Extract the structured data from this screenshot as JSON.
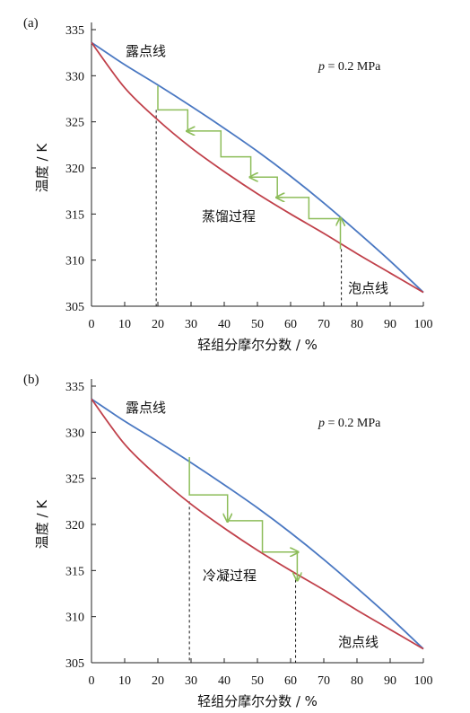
{
  "chart_data": [
    {
      "type": "line",
      "panel_label": "(a)",
      "pressure_label": {
        "symbol": "p",
        "rest": " = 0.2 MPa"
      },
      "xlabel": "轻组分摩尔分数 / %",
      "ylabel": "温度 / K",
      "xlim": [
        0,
        100
      ],
      "ylim": [
        305,
        335
      ],
      "xticks": [
        "0",
        "10",
        "20",
        "30",
        "40",
        "50",
        "60",
        "70",
        "80",
        "90",
        "100"
      ],
      "yticks": [
        "305",
        "310",
        "315",
        "320",
        "325",
        "330",
        "335"
      ],
      "series": [
        {
          "name": "露点线",
          "color": "#4a78c2",
          "x": [
            0,
            10,
            20,
            30,
            40,
            50,
            60,
            70,
            80,
            90,
            100
          ],
          "y": [
            333.6,
            331.2,
            329.0,
            326.7,
            324.3,
            321.8,
            319.1,
            316.2,
            313.1,
            309.9,
            306.5
          ]
        },
        {
          "name": "泡点线",
          "color": "#c0404a",
          "x": [
            0,
            10,
            20,
            30,
            40,
            50,
            60,
            70,
            80,
            90,
            100
          ],
          "y": [
            333.6,
            328.7,
            325.2,
            322.2,
            319.6,
            317.2,
            315.0,
            312.9,
            310.7,
            308.6,
            306.5
          ]
        }
      ],
      "process_label": "蒸馏过程",
      "process_color": "#8dbd5a",
      "process_path": [
        [
          75,
          311.2
        ],
        [
          75,
          314.5
        ],
        [
          65.5,
          314.5
        ],
        [
          65.5,
          316.8
        ],
        [
          56,
          316.8
        ],
        [
          56,
          319.0
        ],
        [
          48,
          319.0
        ],
        [
          48,
          321.2
        ],
        [
          39,
          321.2
        ],
        [
          39,
          324.0
        ],
        [
          29,
          324.0
        ],
        [
          29,
          326.3
        ],
        [
          20,
          326.3
        ],
        [
          20,
          328.9
        ]
      ],
      "process_arrows": [
        [
          75,
          314.5
        ],
        [
          56,
          316.8
        ],
        [
          48,
          319.0
        ],
        [
          29,
          324.0
        ]
      ],
      "dashed_x": [
        19.5,
        75.3
      ],
      "dashed_y": [
        326.3,
        311.2
      ]
    },
    {
      "type": "line",
      "panel_label": "(b)",
      "pressure_label": {
        "symbol": "p",
        "rest": " = 0.2 MPa"
      },
      "xlabel": "轻组分摩尔分数 / %",
      "ylabel": "温度 / K",
      "xlim": [
        0,
        100
      ],
      "ylim": [
        305,
        335
      ],
      "xticks": [
        "0",
        "10",
        "20",
        "30",
        "40",
        "50",
        "60",
        "70",
        "80",
        "90",
        "100"
      ],
      "yticks": [
        "305",
        "310",
        "315",
        "320",
        "325",
        "330",
        "335"
      ],
      "series": [
        {
          "name": "露点线",
          "color": "#4a78c2",
          "x": [
            0,
            10,
            20,
            30,
            40,
            50,
            60,
            70,
            80,
            90,
            100
          ],
          "y": [
            333.6,
            331.2,
            329.0,
            326.7,
            324.3,
            321.8,
            319.1,
            316.2,
            313.1,
            309.9,
            306.5
          ]
        },
        {
          "name": "泡点线",
          "color": "#c0404a",
          "x": [
            0,
            10,
            20,
            30,
            40,
            50,
            60,
            70,
            80,
            90,
            100
          ],
          "y": [
            333.6,
            328.7,
            325.2,
            322.2,
            319.6,
            317.2,
            315.0,
            312.9,
            310.7,
            308.6,
            306.5
          ]
        }
      ],
      "process_label": "冷凝过程",
      "process_color": "#8dbd5a",
      "process_path": [
        [
          29.5,
          327.3
        ],
        [
          29.5,
          323.2
        ],
        [
          41,
          323.2
        ],
        [
          41,
          320.4
        ],
        [
          51.5,
          320.4
        ],
        [
          51.5,
          317.0
        ],
        [
          62,
          317.0
        ],
        [
          62,
          314.0
        ]
      ],
      "process_arrows": [
        [
          41,
          320.4
        ],
        [
          62,
          317.0
        ],
        [
          62,
          314.0
        ]
      ],
      "dashed_x": [
        29.5,
        61.5
      ],
      "dashed_y": [
        322.5,
        314.0
      ]
    }
  ]
}
